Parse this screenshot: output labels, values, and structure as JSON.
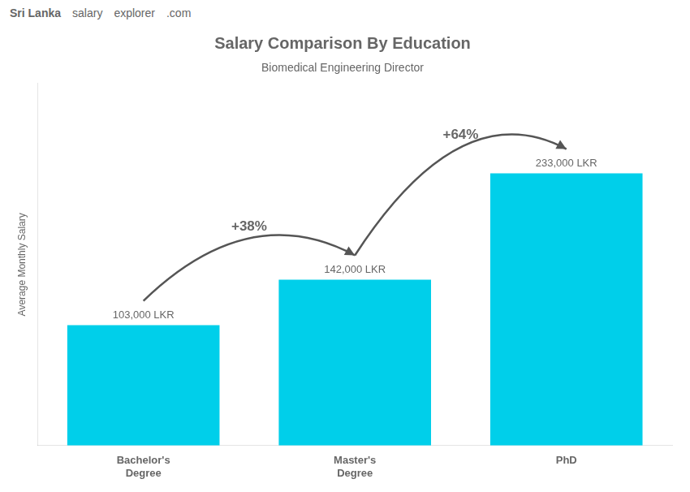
{
  "chart_data": {
    "type": "bar",
    "title": "Salary Comparison By Education",
    "subtitle": "Biomedical Engineering Director",
    "ylabel": "Average Monthly Salary",
    "categories": [
      "Bachelor's\nDegree",
      "Master's\nDegree",
      "PhD"
    ],
    "values": [
      103000,
      142000,
      233000
    ],
    "value_labels": [
      "103,000 LKR",
      "142,000 LKR",
      "233,000 LKR"
    ],
    "data_labels": true,
    "color": "#00CFEA",
    "ylim": [
      0,
      310000
    ],
    "tick_labels": "x",
    "grid": false,
    "annotations": [
      {
        "text": "Sri Lanka"
      },
      {
        "text": "salary"
      },
      {
        "text": "explorer"
      },
      {
        "text": ".com"
      },
      {
        "text": "+38%",
        "from": "Bachelor's\nDegree",
        "to": "Master's\nDegree"
      },
      {
        "text": "+64%",
        "from": "Master's\nDegree",
        "to": "PhD"
      }
    ]
  }
}
